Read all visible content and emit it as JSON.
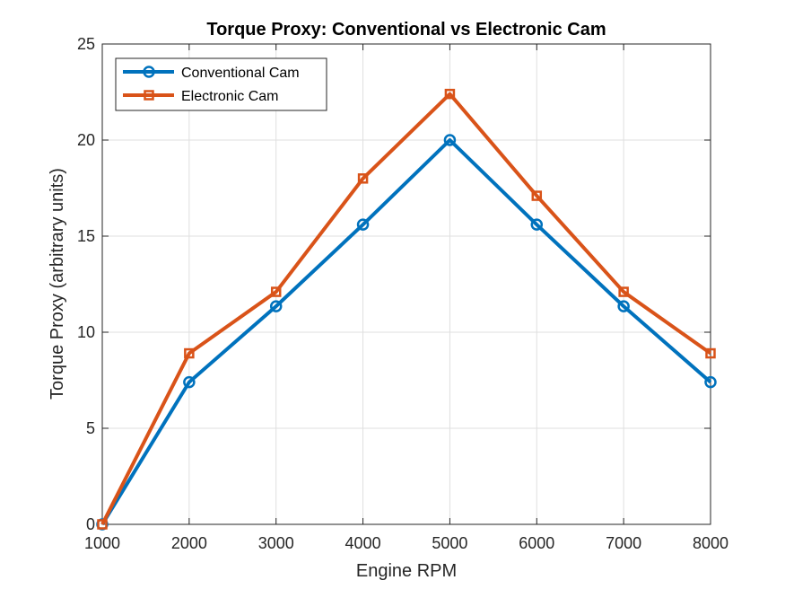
{
  "chart_data": {
    "type": "line",
    "title": "Torque Proxy: Conventional vs Electronic Cam",
    "xlabel": "Engine RPM",
    "ylabel": "Torque Proxy (arbitrary units)",
    "x": [
      1000,
      2000,
      3000,
      4000,
      5000,
      6000,
      7000,
      8000
    ],
    "xlim": [
      1000,
      8000
    ],
    "ylim": [
      0,
      25
    ],
    "xticks": [
      "1000",
      "2000",
      "3000",
      "4000",
      "5000",
      "6000",
      "7000",
      "8000"
    ],
    "yticks": [
      "0",
      "5",
      "10",
      "15",
      "20",
      "25"
    ],
    "grid": true,
    "legend_position": "top-left",
    "series": [
      {
        "name": "Conventional Cam",
        "color": "#0072BD",
        "marker": "circle",
        "values": [
          0,
          7.4,
          11.35,
          15.6,
          20.0,
          15.6,
          11.35,
          7.4
        ]
      },
      {
        "name": "Electronic Cam",
        "color": "#D95319",
        "marker": "square",
        "values": [
          0,
          8.9,
          12.1,
          18.0,
          22.4,
          17.1,
          12.1,
          8.9
        ]
      }
    ]
  }
}
